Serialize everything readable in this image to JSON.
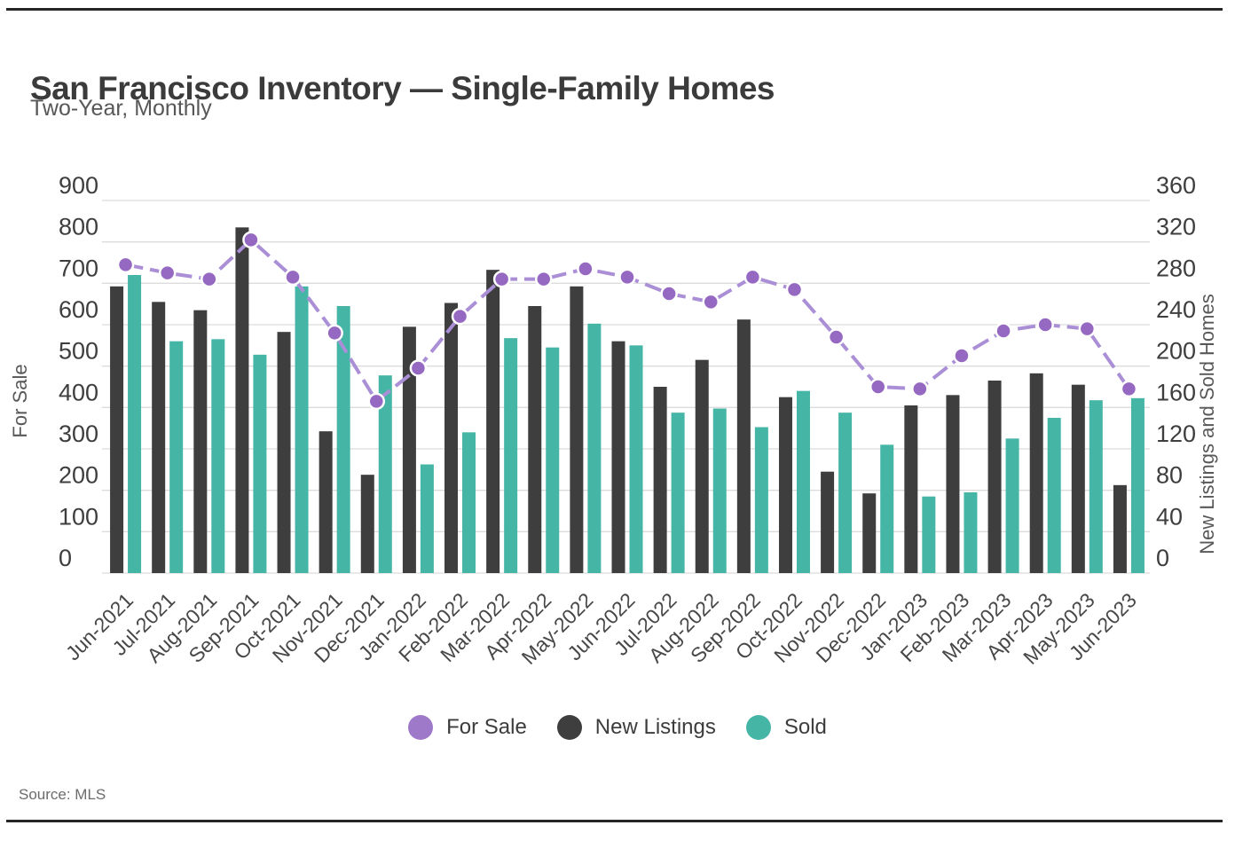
{
  "header": {
    "title": "San Francisco Inventory — Single-Family Homes",
    "subtitle": "Two-Year, Monthly"
  },
  "source": {
    "text": "Source: MLS"
  },
  "legend": [
    {
      "label": "For Sale",
      "color": "#9e79c9"
    },
    {
      "label": "New Listings",
      "color": "#3e3e3e"
    },
    {
      "label": "Sold",
      "color": "#45b5a6"
    }
  ],
  "colors": {
    "line": "#ab8fd6",
    "dot": "#9568c1",
    "dot_ring": "#ffffff",
    "bar_new_listings": "#3e3e3e",
    "bar_sold": "#45b5a6",
    "grid": "#dcdcdc",
    "tick_label": "#3e3e3e",
    "axis_title": "#585858",
    "x_label": "#474747",
    "rule": "#262626"
  },
  "chart_data": {
    "type": "bar",
    "subtype": "grouped-columns-with-line",
    "title": "San Francisco Inventory — Single-Family Homes",
    "subtitle": "Two-Year, Monthly",
    "grid": "horizontal-on",
    "legend_position": "bottom-center",
    "categories": [
      "Jun-2021",
      "Jul-2021",
      "Aug-2021",
      "Sep-2021",
      "Oct-2021",
      "Nov-2021",
      "Dec-2021",
      "Jan-2022",
      "Feb-2022",
      "Mar-2022",
      "Apr-2022",
      "May-2022",
      "Jun-2022",
      "Jul-2022",
      "Aug-2022",
      "Sep-2022",
      "Oct-2022",
      "Nov-2022",
      "Dec-2022",
      "Jan-2023",
      "Feb-2023",
      "Mar-2023",
      "Apr-2023",
      "May-2023",
      "Jun-2023"
    ],
    "left_axis": {
      "title": "For Sale",
      "min": 0,
      "max": 900,
      "step": 100,
      "ticks": [
        0,
        100,
        200,
        300,
        400,
        500,
        600,
        700,
        800,
        900
      ]
    },
    "right_axis": {
      "title": "New Listings and Sold Homes",
      "min": 0,
      "max": 360,
      "step": 40,
      "ticks": [
        0,
        40,
        80,
        120,
        160,
        200,
        240,
        280,
        320,
        360
      ]
    },
    "series": [
      {
        "name": "For Sale",
        "type": "line",
        "axis": "left",
        "values": [
          745,
          725,
          710,
          805,
          715,
          580,
          415,
          495,
          620,
          710,
          710,
          735,
          715,
          675,
          655,
          715,
          685,
          570,
          450,
          445,
          525,
          585,
          600,
          590,
          445
        ]
      },
      {
        "name": "New Listings",
        "type": "bar",
        "axis": "right",
        "values": [
          277,
          262,
          254,
          334,
          233,
          137,
          95,
          238,
          261,
          293,
          258,
          277,
          224,
          180,
          206,
          245,
          170,
          98,
          77,
          162,
          172,
          186,
          193,
          182,
          85
        ]
      },
      {
        "name": "Sold",
        "type": "bar",
        "axis": "right",
        "values": [
          288,
          224,
          226,
          211,
          277,
          258,
          191,
          105,
          136,
          227,
          218,
          241,
          220,
          155,
          159,
          141,
          176,
          155,
          124,
          74,
          78,
          130,
          150,
          167,
          169
        ]
      }
    ]
  }
}
